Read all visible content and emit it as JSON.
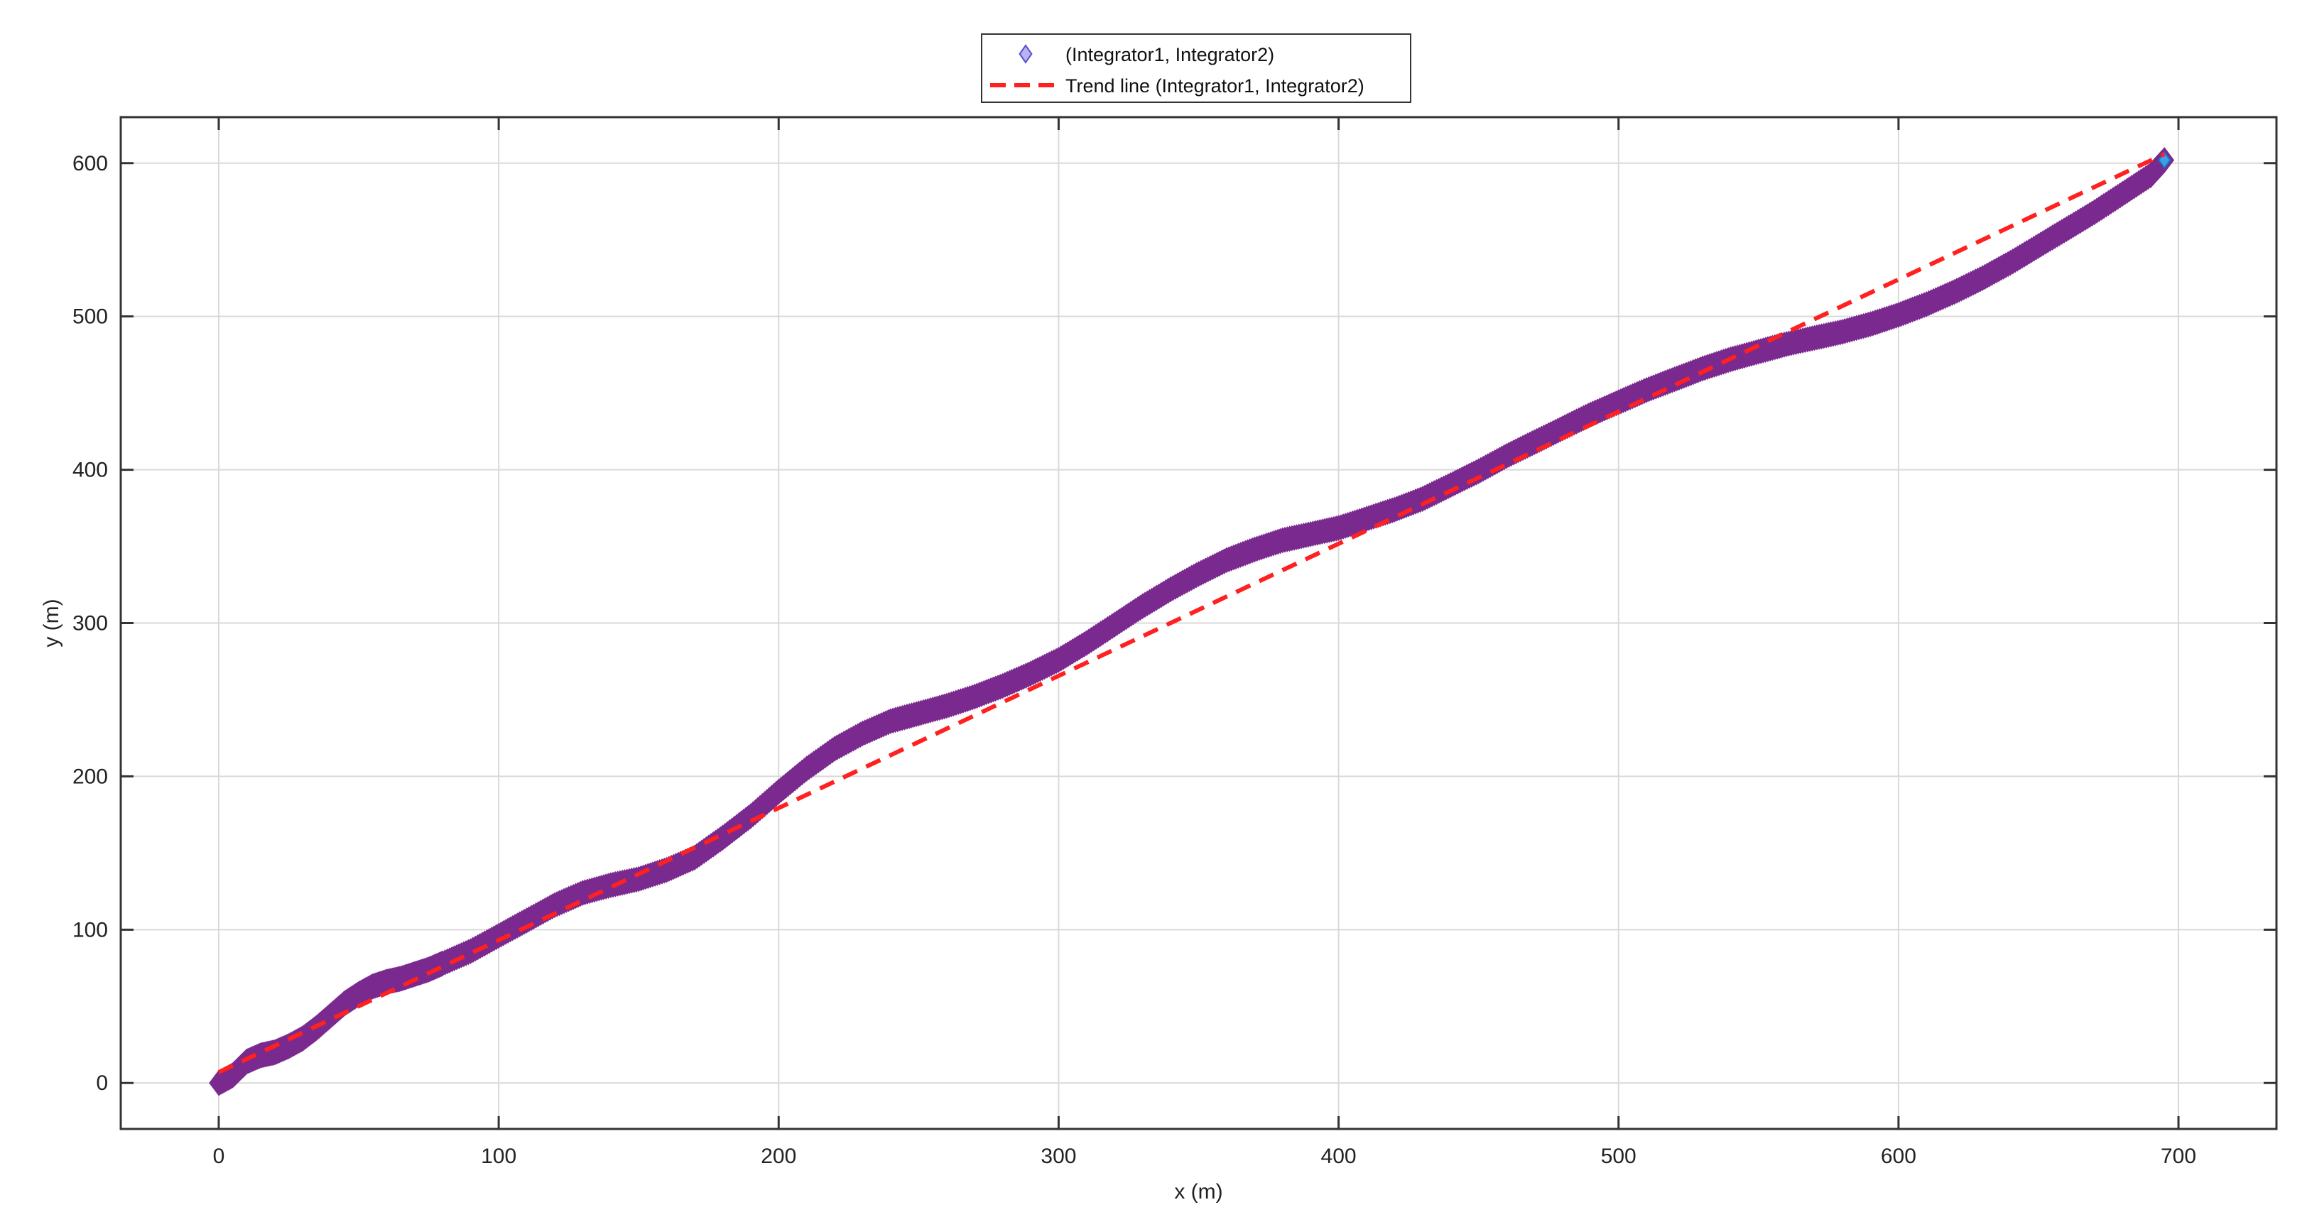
{
  "chart_data": {
    "type": "scatter",
    "title": "",
    "xlabel": "x (m)",
    "ylabel": "y (m)",
    "xlim": [
      -35,
      735
    ],
    "ylim": [
      -30,
      630
    ],
    "xticks": [
      0,
      100,
      200,
      300,
      400,
      500,
      600,
      700
    ],
    "yticks": [
      0,
      100,
      200,
      300,
      400,
      500,
      600
    ],
    "grid": true,
    "legend_position": "top-center",
    "series": [
      {
        "name": "(Integrator1, Integrator2)",
        "kind": "scatter",
        "marker": "diamond",
        "color": "#7a2a8e",
        "marker_face": "#b8b4f0",
        "x": [
          0,
          5,
          10,
          15,
          20,
          25,
          30,
          35,
          40,
          45,
          50,
          55,
          60,
          65,
          70,
          75,
          80,
          90,
          100,
          110,
          120,
          130,
          140,
          150,
          160,
          170,
          180,
          190,
          200,
          210,
          220,
          230,
          240,
          250,
          260,
          270,
          280,
          290,
          300,
          310,
          320,
          330,
          340,
          350,
          360,
          370,
          380,
          390,
          400,
          410,
          420,
          430,
          440,
          450,
          460,
          470,
          480,
          490,
          500,
          510,
          520,
          530,
          540,
          550,
          560,
          570,
          580,
          590,
          600,
          610,
          620,
          630,
          640,
          650,
          660,
          670,
          680,
          690,
          695
        ],
        "y": [
          0,
          5,
          14,
          18,
          20,
          24,
          29,
          36,
          44,
          52,
          58,
          63,
          66,
          68,
          71,
          74,
          78,
          86,
          96,
          106,
          116,
          124,
          129,
          133,
          139,
          147,
          160,
          174,
          190,
          205,
          218,
          228,
          236,
          241,
          246,
          252,
          259,
          267,
          276,
          287,
          299,
          311,
          322,
          332,
          341,
          348,
          354,
          358,
          362,
          368,
          374,
          381,
          390,
          399,
          409,
          418,
          427,
          436,
          444,
          452,
          459,
          466,
          472,
          477,
          482,
          486,
          490,
          495,
          501,
          508,
          516,
          525,
          535,
          546,
          557,
          568,
          580,
          592,
          602
        ]
      },
      {
        "name": "Trend line (Integrator1, Integrator2)",
        "kind": "line",
        "dash": "dashed",
        "color": "#ff2020",
        "x": [
          0,
          695
        ],
        "y": [
          7,
          606
        ]
      }
    ]
  }
}
